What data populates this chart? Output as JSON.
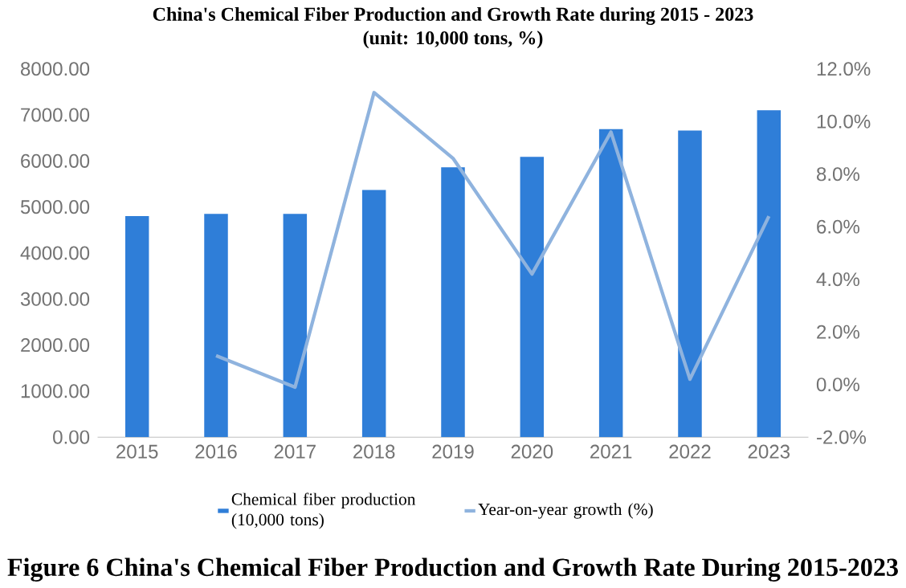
{
  "chart_data": {
    "type": "bar",
    "title": "China's Chemical Fiber Production and Growth Rate during 2015 - 2023",
    "subtitle": "(unit: 10,000 tons, %)",
    "categories": [
      "2015",
      "2016",
      "2017",
      "2018",
      "2019",
      "2020",
      "2021",
      "2022",
      "2023"
    ],
    "series": [
      {
        "name": "Chemical fiber production (10,000 tons)",
        "color": "#2f7ed8",
        "values": [
          4800,
          4850,
          4850,
          5370,
          5860,
          6090,
          6690,
          6660,
          7100
        ]
      },
      {
        "name": "Year-on-year growth (%)",
        "type": "line",
        "axis": "y2",
        "color": "#8fb3de",
        "values": [
          null,
          1.1,
          -0.1,
          11.1,
          8.6,
          4.2,
          9.6,
          0.2,
          6.4
        ]
      }
    ],
    "ylim": [
      0,
      8000
    ],
    "yticks": [
      {
        "value": 0,
        "label": "0.00"
      },
      {
        "value": 1000,
        "label": "1000.00"
      },
      {
        "value": 2000,
        "label": "2000.00"
      },
      {
        "value": 3000,
        "label": "3000.00"
      },
      {
        "value": 4000,
        "label": "4000.00"
      },
      {
        "value": 5000,
        "label": "5000.00"
      },
      {
        "value": 6000,
        "label": "6000.00"
      },
      {
        "value": 7000,
        "label": "7000.00"
      },
      {
        "value": 8000,
        "label": "8000.00"
      }
    ],
    "y2lim": [
      -2,
      12
    ],
    "y2ticks": [
      {
        "value": -2,
        "label": "-2.0%"
      },
      {
        "value": 0,
        "label": "0.0%"
      },
      {
        "value": 2,
        "label": "2.0%"
      },
      {
        "value": 4,
        "label": "4.0%"
      },
      {
        "value": 6,
        "label": "6.0%"
      },
      {
        "value": 8,
        "label": "8.0%"
      },
      {
        "value": 10,
        "label": "10.0%"
      },
      {
        "value": 12,
        "label": "12.0%"
      }
    ],
    "legend": "bottom",
    "grid": false,
    "annotations": [
      "Figure 6 China's Chemical Fiber Production and Growth Rate During 2015-2023"
    ]
  }
}
